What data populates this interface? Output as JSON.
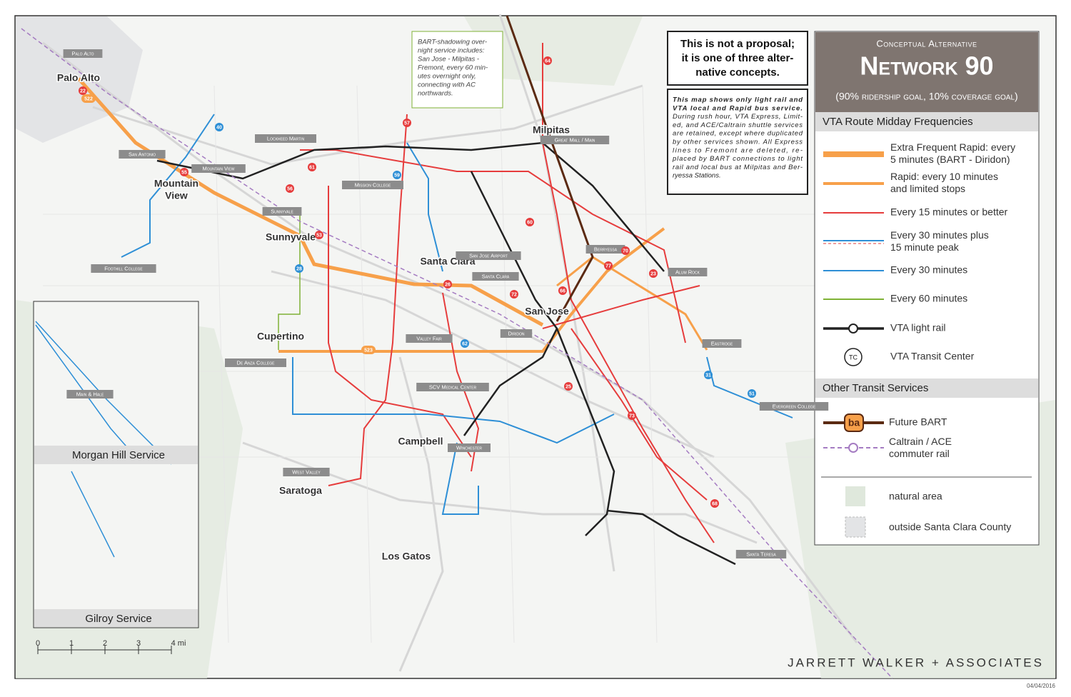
{
  "title_block": {
    "kicker": "Conceptual Alternative",
    "title": "Network 90",
    "subtitle": "(90% ridership goal, 10% coverage goal)"
  },
  "disclaimer": [
    "This is not a proposal;",
    "it is one of three alter-",
    "native concepts."
  ],
  "note": [
    "This map shows only light rail and",
    "VTA local and Rapid bus service.",
    "During rush hour, VTA Express, Limit-",
    "ed, and ACE/Caltrain shuttle services",
    "are retained, except where duplicated",
    "by other services shown. All Express",
    "lines to Fremont are deleted, re-",
    "placed by BART connections to light",
    "rail and local bus at Milpitas and Ber-",
    "ryessa Stations."
  ],
  "bart_note": [
    "BART-shadowing over-",
    "night service includes:",
    "San Jose - Milpitas -",
    "Fremont, every 60 min-",
    "utes overnight only,",
    "connecting with AC",
    "northwards."
  ],
  "legend": {
    "frequency_heading": "VTA Route Midday Frequencies",
    "frequency_items": [
      [
        "Extra Frequent Rapid: every",
        "5 minutes (BART - Diridon)"
      ],
      [
        "Rapid: every 10 minutes",
        "and limited stops"
      ],
      [
        "Every 15 minutes or better"
      ],
      [
        "Every 30 minutes plus",
        "15 minute peak"
      ],
      [
        "Every 30 minutes"
      ],
      [
        "Every 60 minutes"
      ],
      [
        "VTA light rail"
      ],
      [
        "VTA Transit Center"
      ]
    ],
    "tc_symbol": "TC",
    "other_heading": "Other Transit Services",
    "bart_badge": "ba",
    "other_items": [
      [
        "Future BART"
      ],
      [
        "Caltrain / ACE",
        "commuter rail"
      ],
      [
        "natural area"
      ],
      [
        "outside Santa Clara County"
      ]
    ]
  },
  "cities": [
    [
      "Palo Alto"
    ],
    [
      "Mountain",
      "View"
    ],
    [
      "Sunnyvale"
    ],
    [
      "Santa Clara"
    ],
    [
      "Milpitas"
    ],
    [
      "San Jose"
    ],
    [
      "Cupertino"
    ],
    [
      "Campbell"
    ],
    [
      "Saratoga"
    ],
    [
      "Los Gatos"
    ]
  ],
  "stations": [
    "Palo Alto",
    "San Antonio",
    "Mountain View",
    "Lockheed Martin",
    "Sunnyvale",
    "Mission College",
    "Foothill College",
    "San Jose Airport",
    "Santa Clara",
    "Great Mall / Main",
    "Berryessa",
    "Alum Rock",
    "Eastridge",
    "Valley Fair",
    "De Anza College",
    "SCV Medical Center",
    "Diridon",
    "Winchester",
    "West Valley",
    "Evergreen College",
    "Santa Teresa",
    "Main & Hale"
  ],
  "route_badges": [
    "22",
    "522",
    "40",
    "57",
    "64",
    "61",
    "56",
    "53",
    "60",
    "66",
    "77",
    "70",
    "23",
    "523",
    "28",
    "62",
    "68",
    "73",
    "25",
    "26",
    "31",
    "51",
    "55",
    "59",
    "72"
  ],
  "insets": [
    "Morgan Hill Service",
    "Gilroy Service"
  ],
  "scale": [
    "0",
    "1",
    "2",
    "3",
    "4 mi"
  ],
  "footer": {
    "firm": "JARRETT WALKER + ASSOCIATES",
    "date": "04/04/2016"
  }
}
